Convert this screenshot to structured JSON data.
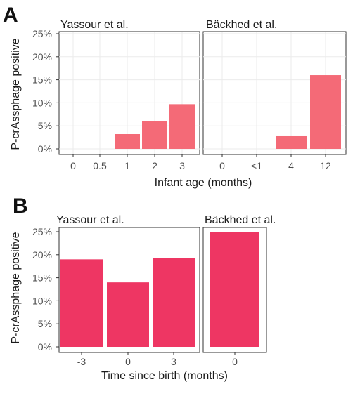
{
  "colors": {
    "panel_a_bar": "#f46a77",
    "panel_b_bar": "#ee3663",
    "grid": "#ebebeb",
    "frame": "#333333"
  },
  "chart_data": [
    {
      "type": "bar",
      "panel_label": "A",
      "ylabel": "P-crAssphage positive",
      "xlabel": "Infant age (months)",
      "ylim": [
        0,
        25
      ],
      "yticks": [
        "0%",
        "5%",
        "10%",
        "15%",
        "20%",
        "25%"
      ],
      "grid": true,
      "facets": [
        {
          "title": "Yassour et al.",
          "categories": [
            "0",
            "0.5",
            "1",
            "2",
            "3"
          ],
          "values": [
            0,
            0,
            3.2,
            6.0,
            9.7
          ]
        },
        {
          "title": "Bäckhed et al.",
          "categories": [
            "0",
            "<1",
            "4",
            "12"
          ],
          "values": [
            0,
            0,
            2.9,
            16.0
          ]
        }
      ]
    },
    {
      "type": "bar",
      "panel_label": "B",
      "ylabel": "P-crAssphage positive",
      "xlabel": "Time since birth (months)",
      "ylim": [
        0,
        25
      ],
      "yticks": [
        "0%",
        "5%",
        "10%",
        "15%",
        "20%",
        "25%"
      ],
      "grid": false,
      "facets": [
        {
          "title": "Yassour et al.",
          "categories": [
            "-3",
            "0",
            "3"
          ],
          "values": [
            19.0,
            14.0,
            19.3
          ]
        },
        {
          "title": "Bäckhed et al.",
          "categories": [
            "0"
          ],
          "values": [
            24.9
          ]
        }
      ]
    }
  ]
}
